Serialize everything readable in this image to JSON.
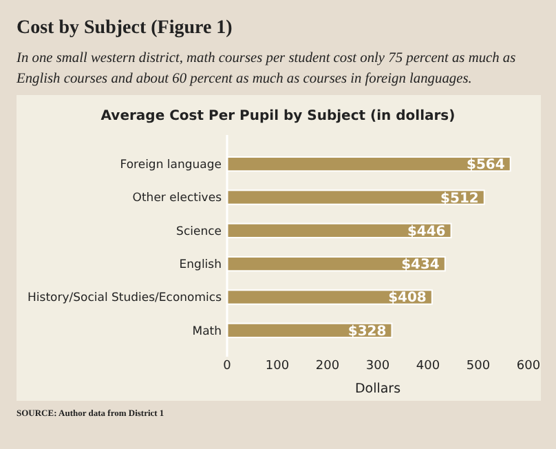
{
  "chart_data": {
    "type": "bar",
    "orientation": "horizontal",
    "title": "Average Cost Per Pupil by Subject (in dollars)",
    "subtitle": "In one small western district, math courses per student cost only 75 percent as much as English courses and about 60 percent as much as courses in foreign languages.",
    "annotations": [
      "Cost by Subject (Figure 1)",
      "SOURCE: Author data from District 1"
    ],
    "categories": [
      "Foreign language",
      "Other electives",
      "Science",
      "English",
      "History/Social Studies/Economics",
      "Math"
    ],
    "values": [
      564,
      512,
      446,
      434,
      408,
      328
    ],
    "value_labels": [
      "$564",
      "$512",
      "$446",
      "$434",
      "$408",
      "$328"
    ],
    "color": "#b09558",
    "xlabel": "Dollars",
    "xlim": [
      0,
      600
    ],
    "xticks": [
      0,
      100,
      200,
      300,
      400,
      500,
      600
    ],
    "grid": false
  }
}
